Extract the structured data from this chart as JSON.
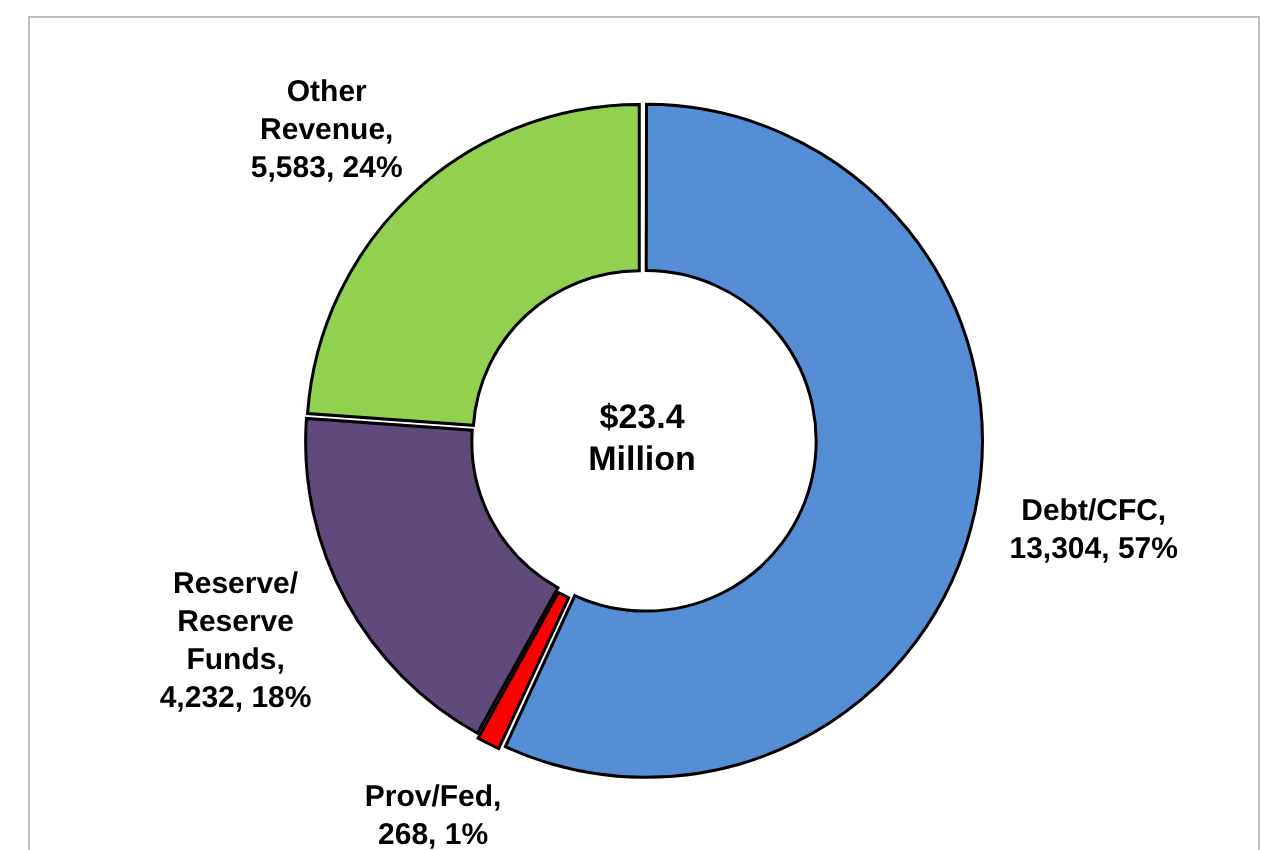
{
  "chart_data": {
    "type": "donut",
    "categories": [
      "Debt/CFC",
      "Prov/Fed",
      "Reserve/ Reserve Funds",
      "Other Revenue"
    ],
    "values": [
      13304,
      268,
      4232,
      5583
    ],
    "colors": [
      "#558ed5",
      "#ff0000",
      "#604a7b",
      "#92d050"
    ],
    "value_labels": [
      ", 13,304, 57%",
      ", 268, 1%",
      ", 4,232, 18%",
      ", 5,583, 24%"
    ],
    "annotations": [
      "$23.4 Million"
    ],
    "legend": false
  }
}
